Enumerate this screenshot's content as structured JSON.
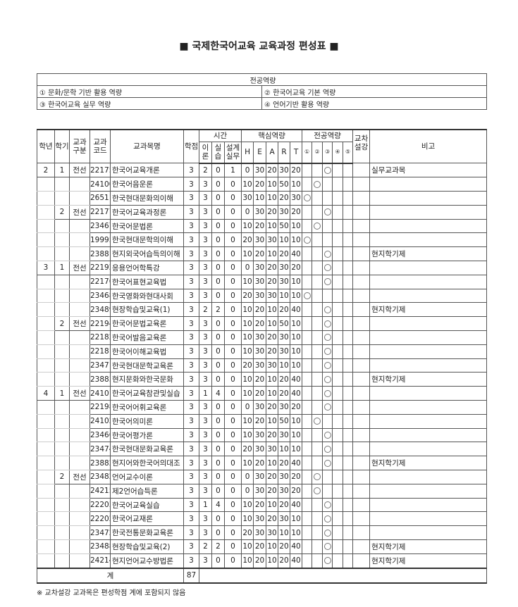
{
  "title": "■ 국제한국어교육 교육과정 편성표 ■",
  "competency_box": {
    "header": "전공역량",
    "items": [
      "① 문화/문학 기반 활용 역량",
      "② 한국어교육 기본 역량",
      "③ 한국어교육 실무 역량",
      "④ 언어기반 활용 역량"
    ]
  },
  "table": {
    "headers": {
      "year": "학년",
      "semester": "학기",
      "type": "교과\n구분",
      "code": "교과\n코드",
      "name": "교과목명",
      "credit": "학점",
      "time": "시간",
      "theory": "이\n론",
      "practice": "실\n습",
      "design": "설계\n실무",
      "core": "핵심역량",
      "H": "H",
      "E": "E",
      "A": "A",
      "R": "R",
      "T": "T",
      "major": "전공역량",
      "m1": "①",
      "m2": "②",
      "m3": "③",
      "m4": "④",
      "m5": "⑤",
      "cross": "교차\n설강",
      "remark": "비고"
    },
    "columns": [
      "year",
      "semester",
      "type",
      "code",
      "name",
      "credit",
      "theory",
      "practice",
      "design",
      "H",
      "E",
      "A",
      "R",
      "T",
      "major_competency",
      "cross",
      "remark"
    ],
    "rows": [
      [
        "2",
        "1",
        "전선",
        "22175",
        "한국어교육개론",
        "3",
        "2",
        "0",
        "1",
        "0",
        "30",
        "20",
        "30",
        "20",
        3,
        "",
        "실무교과목"
      ],
      [
        "",
        "",
        "",
        "24100",
        "한국어음운론",
        "3",
        "3",
        "0",
        "0",
        "10",
        "20",
        "10",
        "50",
        "10",
        2,
        "",
        ""
      ],
      [
        "",
        "",
        "",
        "26511",
        "한국현대문화의이해",
        "3",
        "3",
        "0",
        "0",
        "30",
        "10",
        "10",
        "20",
        "30",
        1,
        "",
        ""
      ],
      [
        "",
        "2",
        "전선",
        "22177",
        "한국어교육과정론",
        "3",
        "3",
        "0",
        "0",
        "0",
        "30",
        "20",
        "30",
        "20",
        3,
        "",
        ""
      ],
      [
        "",
        "",
        "",
        "23467",
        "한국어문법론",
        "3",
        "3",
        "0",
        "0",
        "10",
        "20",
        "10",
        "50",
        "10",
        2,
        "",
        ""
      ],
      [
        "",
        "",
        "",
        "19995",
        "한국현대문학의이해",
        "3",
        "3",
        "0",
        "0",
        "20",
        "30",
        "30",
        "10",
        "10",
        1,
        "",
        ""
      ],
      [
        "",
        "",
        "",
        "23881",
        "현지외국어습득의이해",
        "3",
        "3",
        "0",
        "0",
        "10",
        "20",
        "10",
        "20",
        "40",
        3,
        "",
        "현지학기제"
      ],
      [
        "3",
        "1",
        "전선",
        "22192",
        "응용언어학특강",
        "3",
        "3",
        "0",
        "0",
        "0",
        "30",
        "20",
        "30",
        "20",
        3,
        "",
        ""
      ],
      [
        "",
        "",
        "",
        "22176",
        "한국어표현교육법",
        "3",
        "3",
        "0",
        "0",
        "10",
        "30",
        "20",
        "30",
        "10",
        3,
        "",
        ""
      ],
      [
        "",
        "",
        "",
        "23468",
        "한국영화와현대사회",
        "3",
        "3",
        "0",
        "0",
        "20",
        "30",
        "30",
        "10",
        "10",
        1,
        "",
        ""
      ],
      [
        "",
        "",
        "",
        "23489",
        "현장학습및교육(1)",
        "3",
        "2",
        "2",
        "0",
        "10",
        "20",
        "10",
        "20",
        "40",
        3,
        "",
        "현지학기제"
      ],
      [
        "",
        "2",
        "전선",
        "22194",
        "한국어문법교육론",
        "3",
        "3",
        "0",
        "0",
        "10",
        "20",
        "10",
        "50",
        "10",
        3,
        "",
        ""
      ],
      [
        "",
        "",
        "",
        "22182",
        "한국어발음교육론",
        "3",
        "3",
        "0",
        "0",
        "10",
        "30",
        "20",
        "30",
        "10",
        3,
        "",
        ""
      ],
      [
        "",
        "",
        "",
        "22181",
        "한국어이해교육법",
        "3",
        "3",
        "0",
        "0",
        "10",
        "30",
        "20",
        "30",
        "10",
        3,
        "",
        ""
      ],
      [
        "",
        "",
        "",
        "23471",
        "한국현대문학교육론",
        "3",
        "3",
        "0",
        "0",
        "20",
        "30",
        "30",
        "10",
        "10",
        3,
        "",
        ""
      ],
      [
        "",
        "",
        "",
        "23883",
        "현지문화와한국문화",
        "3",
        "3",
        "0",
        "0",
        "10",
        "20",
        "10",
        "20",
        "40",
        3,
        "",
        "현지학기제"
      ],
      [
        "4",
        "1",
        "전선",
        "24101",
        "한국어교육참관및실습",
        "3",
        "1",
        "4",
        "0",
        "10",
        "20",
        "10",
        "20",
        "40",
        3,
        "",
        ""
      ],
      [
        "",
        "",
        "",
        "22198",
        "한국어어휘교육론",
        "3",
        "3",
        "0",
        "0",
        "0",
        "30",
        "20",
        "30",
        "20",
        3,
        "",
        ""
      ],
      [
        "",
        "",
        "",
        "24102",
        "한국어의미론",
        "3",
        "3",
        "0",
        "0",
        "10",
        "20",
        "10",
        "50",
        "10",
        2,
        "",
        ""
      ],
      [
        "",
        "",
        "",
        "23466",
        "한국어평가론",
        "3",
        "3",
        "0",
        "0",
        "10",
        "30",
        "20",
        "30",
        "10",
        3,
        "",
        ""
      ],
      [
        "",
        "",
        "",
        "23474",
        "한국현대문화교육론",
        "3",
        "3",
        "0",
        "0",
        "20",
        "30",
        "30",
        "10",
        "10",
        3,
        "",
        ""
      ],
      [
        "",
        "",
        "",
        "23882",
        "현지어와한국어의대조",
        "3",
        "3",
        "0",
        "0",
        "10",
        "20",
        "10",
        "20",
        "40",
        3,
        "",
        "현지학기제"
      ],
      [
        "",
        "2",
        "전선",
        "23482",
        "언어교수이론",
        "3",
        "3",
        "0",
        "0",
        "0",
        "30",
        "20",
        "30",
        "20",
        2,
        "",
        ""
      ],
      [
        "",
        "",
        "",
        "24215",
        "제2언어습득론",
        "3",
        "3",
        "0",
        "0",
        "0",
        "30",
        "20",
        "30",
        "20",
        2,
        "",
        ""
      ],
      [
        "",
        "",
        "",
        "22203",
        "한국어교육실습",
        "3",
        "1",
        "4",
        "0",
        "10",
        "20",
        "10",
        "20",
        "40",
        3,
        "",
        ""
      ],
      [
        "",
        "",
        "",
        "22202",
        "한국어교재론",
        "3",
        "3",
        "0",
        "0",
        "10",
        "30",
        "20",
        "30",
        "10",
        3,
        "",
        ""
      ],
      [
        "",
        "",
        "",
        "23472",
        "한국전통문화교육론",
        "3",
        "3",
        "0",
        "0",
        "20",
        "30",
        "30",
        "10",
        "10",
        3,
        "",
        ""
      ],
      [
        "",
        "",
        "",
        "23488",
        "현장학습및교육(2)",
        "3",
        "2",
        "2",
        "0",
        "10",
        "20",
        "10",
        "20",
        "40",
        3,
        "",
        "현지학기제"
      ],
      [
        "",
        "",
        "",
        "24214",
        "현지언어교수방법론",
        "3",
        "3",
        "0",
        "0",
        "10",
        "20",
        "10",
        "20",
        "40",
        3,
        "",
        "현지학기제"
      ]
    ],
    "total": {
      "label": "계",
      "credit": "87"
    }
  },
  "footnote": "※ 교차설강 교과목은 편성학점 계에 포함되지 않음"
}
